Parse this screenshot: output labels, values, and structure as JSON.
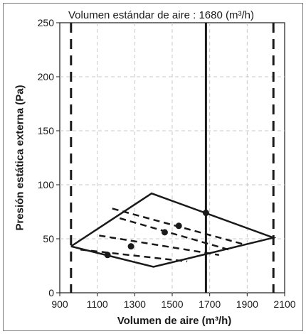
{
  "chart_data": {
    "type": "line",
    "title": "Volumen estándar de aire : 1680 (m³/h)",
    "xlabel": "Volumen de aire (m³/h)",
    "ylabel": "Presión estática externa (Pa)",
    "xlim": [
      900,
      2100
    ],
    "ylim": [
      0,
      250
    ],
    "x_ticks": [
      "900",
      "1100",
      "1300",
      "1500",
      "1700",
      "1900",
      "2100"
    ],
    "y_ticks": [
      "0",
      "50",
      "100",
      "150",
      "200",
      "250"
    ],
    "grid": true,
    "operating_region": [
      [
        960,
        43
      ],
      [
        1390,
        92
      ],
      [
        2040,
        51
      ],
      [
        1400,
        24
      ],
      [
        960,
        43
      ]
    ],
    "vertical_lines": [
      {
        "x": 960,
        "style": "dashed"
      },
      {
        "x": 1680,
        "style": "solid"
      },
      {
        "x": 2040,
        "style": "dashed"
      }
    ],
    "fan_curves": [
      [
        [
          1180,
          78
        ],
        [
          1880,
          45
        ]
      ],
      [
        [
          1220,
          69
        ],
        [
          1800,
          40
        ]
      ],
      [
        [
          1110,
          53
        ],
        [
          1750,
          35
        ]
      ],
      [
        [
          1010,
          40
        ],
        [
          1580,
          29
        ]
      ]
    ],
    "points": [
      [
        1155,
        35
      ],
      [
        1280,
        43
      ],
      [
        1460,
        56
      ],
      [
        1535,
        62
      ],
      [
        1680,
        74
      ]
    ]
  }
}
